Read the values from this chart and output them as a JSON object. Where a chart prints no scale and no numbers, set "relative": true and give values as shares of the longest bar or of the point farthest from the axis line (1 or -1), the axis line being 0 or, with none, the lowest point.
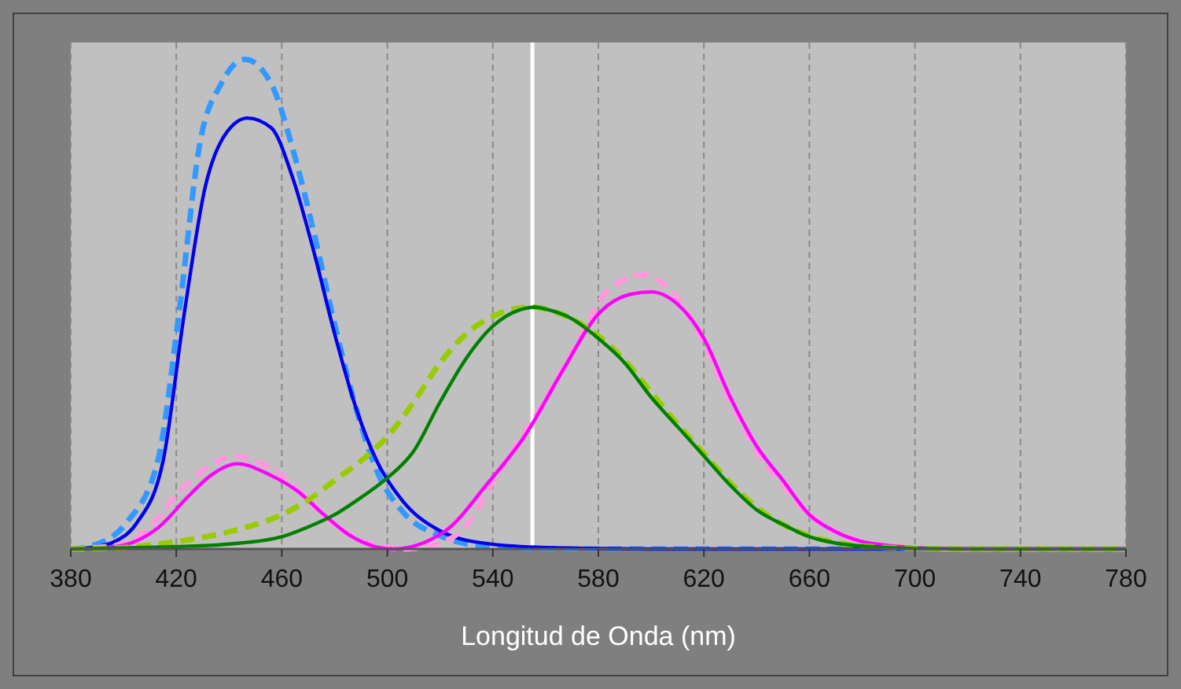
{
  "chart_data": {
    "type": "line",
    "relative": true,
    "xlabel": "Longitud de Onda (nm)",
    "xlim": [
      380,
      780
    ],
    "xticks": [
      380,
      420,
      460,
      500,
      540,
      580,
      620,
      660,
      700,
      740,
      780
    ],
    "grid": "x",
    "ref_lines": [
      {
        "axis": "x",
        "value": 555,
        "color": "#ffffff"
      }
    ],
    "series": [
      {
        "color": "#3399ff",
        "line_style": "dashed",
        "x": [
          380,
          390,
          401,
          413,
          421,
          429,
          437,
          446,
          456,
          464,
          472,
          480,
          488,
          496,
          506,
          520,
          538,
          560,
          600,
          780
        ],
        "values": [
          0,
          0.01,
          0.053,
          0.18,
          0.48,
          0.83,
          0.95,
          1,
          0.95,
          0.82,
          0.65,
          0.46,
          0.29,
          0.16,
          0.075,
          0.027,
          0.005,
          0,
          0,
          0
        ]
      },
      {
        "color": "#0000ee",
        "line_style": "solid",
        "x": [
          380,
          390,
          397,
          405,
          415,
          423,
          431,
          439,
          447,
          456,
          464,
          472,
          480,
          488,
          496,
          506,
          520,
          538,
          560,
          600,
          780
        ],
        "values": [
          0,
          0.005,
          0.016,
          0.053,
          0.18,
          0.48,
          0.74,
          0.85,
          0.88,
          0.86,
          0.76,
          0.61,
          0.44,
          0.29,
          0.18,
          0.097,
          0.037,
          0.011,
          0.003,
          0,
          0
        ]
      },
      {
        "color": "#ff99dd",
        "line_style": "dashed",
        "x": [
          380,
          400,
          410,
          420,
          430,
          442,
          450,
          460,
          470,
          480,
          490,
          500,
          505,
          515,
          528,
          542,
          556,
          572,
          584,
          597,
          607,
          620,
          630,
          640,
          650,
          660,
          670,
          680,
          690,
          700,
          720,
          780
        ],
        "values": [
          0,
          0.01,
          0.045,
          0.11,
          0.16,
          0.19,
          0.18,
          0.15,
          0.1,
          0.05,
          0.018,
          0.003,
          0,
          0.005,
          0.037,
          0.155,
          0.27,
          0.42,
          0.53,
          0.56,
          0.53,
          0.42,
          0.3,
          0.2,
          0.13,
          0.07,
          0.035,
          0.015,
          0.006,
          0.002,
          0,
          0
        ]
      },
      {
        "color": "#ff00ff",
        "line_style": "solid",
        "x": [
          380,
          397,
          413,
          425,
          433,
          443,
          456,
          466,
          476,
          486,
          502,
          522,
          538,
          552,
          566,
          580,
          592,
          600,
          610,
          620,
          630,
          640,
          650,
          660,
          670,
          680,
          690,
          700,
          720,
          780
        ],
        "values": [
          0,
          0.005,
          0.043,
          0.11,
          0.15,
          0.174,
          0.15,
          0.118,
          0.07,
          0.027,
          0,
          0.037,
          0.134,
          0.23,
          0.36,
          0.48,
          0.52,
          0.525,
          0.5,
          0.43,
          0.31,
          0.21,
          0.14,
          0.07,
          0.035,
          0.015,
          0.007,
          0.003,
          0,
          0
        ]
      },
      {
        "color": "#99cc00",
        "line_style": "dashed",
        "x": [
          380,
          400,
          420,
          440,
          450,
          460,
          470,
          480,
          490,
          500,
          510,
          520,
          530,
          540,
          550,
          556,
          560,
          570,
          580,
          590,
          600,
          610,
          620,
          630,
          640,
          650,
          660,
          670,
          680,
          690,
          700,
          720,
          780
        ],
        "values": [
          0,
          0.003,
          0.015,
          0.035,
          0.05,
          0.07,
          0.1,
          0.14,
          0.18,
          0.23,
          0.3,
          0.38,
          0.44,
          0.475,
          0.492,
          0.494,
          0.49,
          0.47,
          0.435,
          0.385,
          0.32,
          0.255,
          0.195,
          0.135,
          0.085,
          0.05,
          0.027,
          0.013,
          0.006,
          0.003,
          0.001,
          0,
          0
        ]
      },
      {
        "color": "#008000",
        "line_style": "solid",
        "x": [
          380,
          400,
          420,
          440,
          460,
          470,
          480,
          490,
          500,
          510,
          520,
          530,
          540,
          550,
          556,
          560,
          570,
          580,
          590,
          600,
          610,
          620,
          630,
          640,
          650,
          660,
          670,
          680,
          690,
          700,
          720,
          780
        ],
        "values": [
          0,
          0.002,
          0.005,
          0.01,
          0.025,
          0.045,
          0.07,
          0.105,
          0.145,
          0.2,
          0.3,
          0.39,
          0.455,
          0.488,
          0.494,
          0.49,
          0.47,
          0.43,
          0.38,
          0.31,
          0.25,
          0.19,
          0.13,
          0.08,
          0.05,
          0.025,
          0.012,
          0.006,
          0.003,
          0.001,
          0,
          0
        ]
      }
    ]
  }
}
